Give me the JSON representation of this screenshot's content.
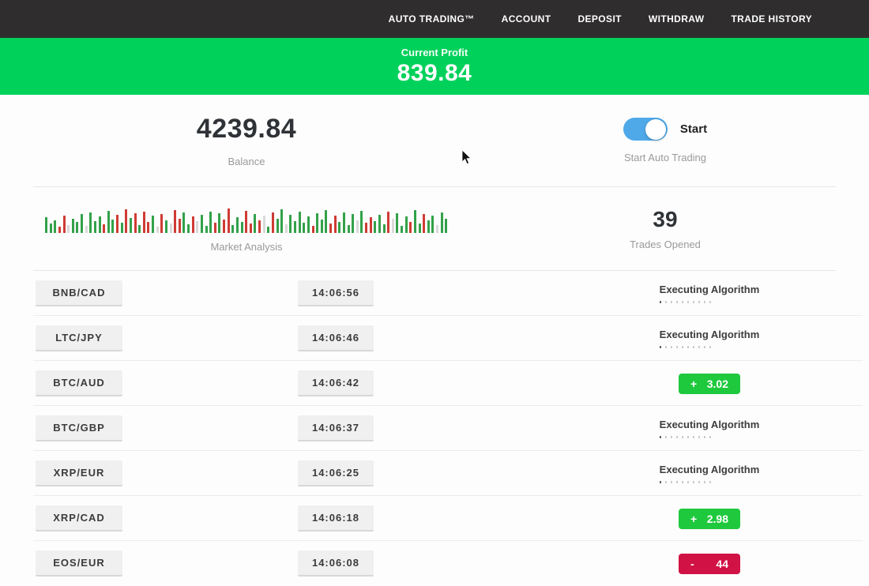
{
  "nav": {
    "items": [
      {
        "label": "AUTO TRADING™"
      },
      {
        "label": "ACCOUNT"
      },
      {
        "label": "DEPOSIT"
      },
      {
        "label": "WITHDRAW"
      },
      {
        "label": "TRADE HISTORY"
      }
    ]
  },
  "profit_banner": {
    "label": "Current Profit",
    "value": "839.84"
  },
  "stats": {
    "balance_value": "4239.84",
    "balance_label": "Balance",
    "toggle_on": true,
    "toggle_label": "Start",
    "toggle_sub_label": "Start Auto Trading",
    "market_label": "Market Analysis",
    "trades_value": "39",
    "trades_label": "Trades Opened"
  },
  "status_executing": {
    "label": "Executing Algorithm",
    "dots": 10
  },
  "rows": [
    {
      "pair": "BNB/CAD",
      "time": "14:06:56",
      "status": "executing"
    },
    {
      "pair": "LTC/JPY",
      "time": "14:06:46",
      "status": "executing"
    },
    {
      "pair": "BTC/AUD",
      "time": "14:06:42",
      "status": "result",
      "sign": "+",
      "value": "3.02",
      "tone": "g"
    },
    {
      "pair": "BTC/GBP",
      "time": "14:06:37",
      "status": "executing"
    },
    {
      "pair": "XRP/EUR",
      "time": "14:06:25",
      "status": "executing"
    },
    {
      "pair": "XRP/CAD",
      "time": "14:06:18",
      "status": "result",
      "sign": "+",
      "value": "2.98",
      "tone": "g"
    },
    {
      "pair": "EOS/EUR",
      "time": "14:06:08",
      "status": "result",
      "sign": "-",
      "value": "44",
      "tone": "r"
    }
  ],
  "chart_data": {
    "type": "bar",
    "title": "Market Analysis",
    "note": "mini sparkline of green/red market bars, bottom-aligned, heights in px",
    "bars": [
      [
        20,
        "g"
      ],
      [
        12,
        "g"
      ],
      [
        16,
        "g"
      ],
      [
        8,
        "r"
      ],
      [
        22,
        "r"
      ],
      [
        10,
        "l"
      ],
      [
        18,
        "g"
      ],
      [
        14,
        "g"
      ],
      [
        24,
        "g"
      ],
      [
        9,
        "l"
      ],
      [
        26,
        "g"
      ],
      [
        15,
        "g"
      ],
      [
        21,
        "g"
      ],
      [
        11,
        "r"
      ],
      [
        28,
        "g"
      ],
      [
        17,
        "g"
      ],
      [
        23,
        "r"
      ],
      [
        13,
        "g"
      ],
      [
        30,
        "r"
      ],
      [
        19,
        "g"
      ],
      [
        25,
        "r"
      ],
      [
        10,
        "g"
      ],
      [
        27,
        "r"
      ],
      [
        14,
        "r"
      ],
      [
        22,
        "g"
      ],
      [
        8,
        "l"
      ],
      [
        24,
        "r"
      ],
      [
        16,
        "g"
      ],
      [
        12,
        "l"
      ],
      [
        29,
        "r"
      ],
      [
        18,
        "r"
      ],
      [
        26,
        "g"
      ],
      [
        11,
        "g"
      ],
      [
        21,
        "r"
      ],
      [
        15,
        "l"
      ],
      [
        23,
        "g"
      ],
      [
        9,
        "g"
      ],
      [
        27,
        "g"
      ],
      [
        13,
        "r"
      ],
      [
        25,
        "g"
      ],
      [
        17,
        "r"
      ],
      [
        31,
        "r"
      ],
      [
        10,
        "g"
      ],
      [
        20,
        "g"
      ],
      [
        14,
        "g"
      ],
      [
        28,
        "r"
      ],
      [
        12,
        "r"
      ],
      [
        24,
        "g"
      ],
      [
        16,
        "r"
      ],
      [
        22,
        "l"
      ],
      [
        8,
        "g"
      ],
      [
        26,
        "r"
      ],
      [
        18,
        "g"
      ],
      [
        30,
        "g"
      ],
      [
        11,
        "l"
      ],
      [
        23,
        "g"
      ],
      [
        15,
        "g"
      ],
      [
        27,
        "g"
      ],
      [
        13,
        "g"
      ],
      [
        21,
        "g"
      ],
      [
        9,
        "r"
      ],
      [
        25,
        "g"
      ],
      [
        17,
        "g"
      ],
      [
        29,
        "g"
      ],
      [
        12,
        "r"
      ],
      [
        22,
        "r"
      ],
      [
        14,
        "g"
      ],
      [
        26,
        "g"
      ],
      [
        10,
        "g"
      ],
      [
        24,
        "g"
      ],
      [
        16,
        "l"
      ],
      [
        28,
        "g"
      ],
      [
        13,
        "r"
      ],
      [
        20,
        "r"
      ],
      [
        15,
        "g"
      ],
      [
        23,
        "g"
      ],
      [
        11,
        "g"
      ],
      [
        27,
        "r"
      ],
      [
        18,
        "l"
      ],
      [
        25,
        "g"
      ],
      [
        9,
        "g"
      ],
      [
        21,
        "g"
      ],
      [
        14,
        "r"
      ],
      [
        29,
        "g"
      ],
      [
        12,
        "g"
      ],
      [
        24,
        "r"
      ],
      [
        16,
        "g"
      ],
      [
        22,
        "g"
      ],
      [
        10,
        "l"
      ],
      [
        26,
        "g"
      ],
      [
        18,
        "g"
      ]
    ]
  },
  "colors": {
    "nav_bg": "#2f2d2d",
    "banner_green": "#00d15b",
    "badge_green": "#1fc93e",
    "badge_red": "#d11244",
    "toggle_blue": "#4fa8e8",
    "bar_green": "#33a149",
    "bar_red": "#cf3b33",
    "bar_light": "#d9d9d9"
  }
}
